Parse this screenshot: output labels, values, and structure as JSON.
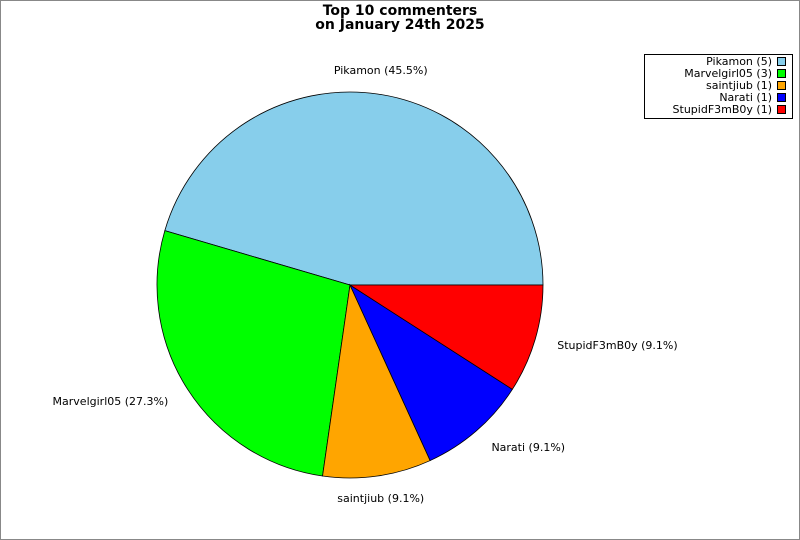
{
  "chart_data": {
    "type": "pie",
    "title": "Top 10 commenters",
    "subtitle": "on January 24th 2025",
    "values": [
      5,
      3,
      1,
      1,
      1
    ],
    "colors": [
      "#87ceeb",
      "#00ff00",
      "#ffa500",
      "#0000ff",
      "#ff0000"
    ],
    "slice_labels": [
      "Pikamon (45.5%)",
      "Marvelgirl05 (27.3%)",
      "saintjiub (9.1%)",
      "Narati (9.1%)",
      "StupidF3mB0y (9.1%)"
    ],
    "legend_labels": [
      "Pikamon (5)",
      "Marvelgirl05 (3)",
      "saintjiub (1)",
      "Narati (1)",
      "StupidF3mB0y (1)"
    ],
    "legend": "upper right"
  }
}
